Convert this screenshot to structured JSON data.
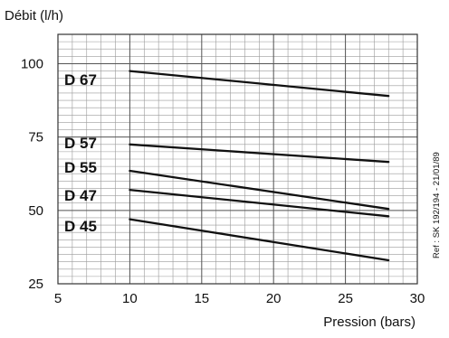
{
  "chart_data": {
    "type": "line",
    "ylabel": "Débit (l/h)",
    "xlabel": "Pression (bars)",
    "xlim": [
      5,
      30
    ],
    "ylim": [
      25,
      110
    ],
    "xticks": [
      5,
      10,
      15,
      20,
      25,
      30
    ],
    "yticks": [
      25,
      50,
      75,
      100
    ],
    "grid": true,
    "series": [
      {
        "name": "D 67",
        "x": [
          10,
          28
        ],
        "y": [
          97.5,
          89
        ]
      },
      {
        "name": "D 57",
        "x": [
          10,
          28
        ],
        "y": [
          72.5,
          66.5
        ]
      },
      {
        "name": "D 55",
        "x": [
          10,
          28
        ],
        "y": [
          63.5,
          50.5
        ]
      },
      {
        "name": "D 47",
        "x": [
          10,
          28
        ],
        "y": [
          57,
          48
        ]
      },
      {
        "name": "D 45",
        "x": [
          10,
          28
        ],
        "y": [
          47,
          33
        ]
      }
    ],
    "annotation": "Ref : SK 192/194 - 21/01/89",
    "line_color": "#111111",
    "grid_color": "#9a9a9a"
  }
}
